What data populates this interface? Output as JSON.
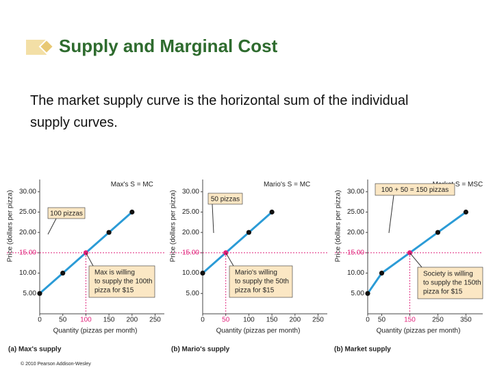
{
  "slide": {
    "title": "Supply and Marginal Cost",
    "text": "The market supply curve is the horizontal sum of the individual supply curves.",
    "copyright": "© 2010 Pearson Addison-Wesley"
  },
  "chart_data": [
    {
      "type": "line",
      "caption": "(a) Max's supply",
      "xlabel": "Quantity (pizzas per month)",
      "ylabel": "Price (dollars per pizza)",
      "curve_label": "Max's S = MC",
      "x": [
        0,
        50,
        100,
        150,
        200
      ],
      "values": [
        5,
        10,
        15,
        20,
        25
      ],
      "color": "#2b9bd6",
      "highlight_index": 2,
      "highlight_color": "#e0207a",
      "xlim": [
        0,
        270
      ],
      "ylim": [
        0,
        33
      ],
      "xticks": [
        0,
        50,
        100,
        150,
        200,
        250
      ],
      "yticks": [
        {
          "value": 5,
          "label": "5.00"
        },
        {
          "value": 10,
          "label": "10.00"
        },
        {
          "value": 15,
          "label": "15.00"
        },
        {
          "value": 20,
          "label": "20.00"
        },
        {
          "value": 25,
          "label": "25.00"
        },
        {
          "value": 30,
          "label": "30.00"
        }
      ],
      "annotations": [
        {
          "text": [
            "100 pizzas"
          ]
        },
        {
          "text": [
            "Max is willing",
            "to supply the 100th",
            "pizza for $15"
          ]
        }
      ]
    },
    {
      "type": "line",
      "caption": "(b) Mario's supply",
      "xlabel": "Quantity (pizzas per month)",
      "ylabel": "Price (dollars per pizza)",
      "curve_label": "Mario's S = MC",
      "x": [
        0,
        50,
        100,
        150
      ],
      "values": [
        10,
        15,
        20,
        25
      ],
      "color": "#2b9bd6",
      "highlight_index": 1,
      "highlight_color": "#e0207a",
      "xlim": [
        0,
        270
      ],
      "ylim": [
        0,
        33
      ],
      "xticks": [
        0,
        50,
        100,
        150,
        200,
        250
      ],
      "yticks": [
        {
          "value": 5,
          "label": "5.00"
        },
        {
          "value": 10,
          "label": "10.00"
        },
        {
          "value": 15,
          "label": "15.00"
        },
        {
          "value": 20,
          "label": "20.00"
        },
        {
          "value": 25,
          "label": "25.00"
        },
        {
          "value": 30,
          "label": "30.00"
        }
      ],
      "annotations": [
        {
          "text": [
            "50 pizzas"
          ]
        },
        {
          "text": [
            "Mario's willing",
            "to supply the 50th",
            "pizza for $15"
          ]
        }
      ]
    },
    {
      "type": "line",
      "caption": "(b) Market supply",
      "xlabel": "Quantity (pizzas per month)",
      "ylabel": "Price (dollars per pizza)",
      "curve_label": "Market S = MSC",
      "x": [
        0,
        50,
        150,
        250,
        350
      ],
      "values": [
        5,
        10,
        15,
        20,
        25
      ],
      "color": "#2b9bd6",
      "highlight_index": 2,
      "highlight_color": "#e0207a",
      "xlim": [
        0,
        410
      ],
      "ylim": [
        0,
        33
      ],
      "xticks": [
        0,
        50,
        150,
        250,
        350
      ],
      "yticks": [
        {
          "value": 5,
          "label": "5.00"
        },
        {
          "value": 10,
          "label": "10.00"
        },
        {
          "value": 15,
          "label": "15.00"
        },
        {
          "value": 20,
          "label": "20.00"
        },
        {
          "value": 25,
          "label": "25.00"
        },
        {
          "value": 30,
          "label": "30.00"
        }
      ],
      "annotations": [
        {
          "text": [
            "100 + 50 = 150 pizzas"
          ]
        },
        {
          "text": [
            "Society is willing",
            "to supply the 150th",
            "pizza for $15"
          ]
        }
      ]
    }
  ]
}
